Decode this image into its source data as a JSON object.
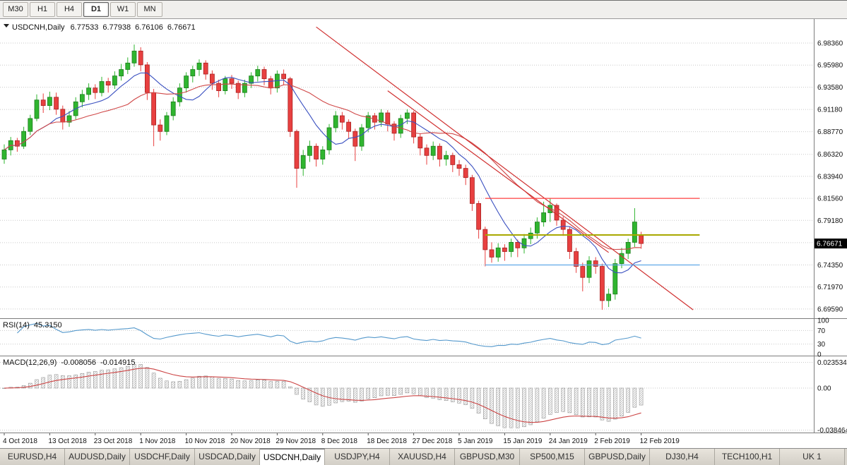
{
  "toolbar": {
    "timeframes": [
      {
        "label": "M30",
        "active": false
      },
      {
        "label": "H1",
        "active": false
      },
      {
        "label": "H4",
        "active": false
      },
      {
        "label": "D1",
        "active": true
      },
      {
        "label": "W1",
        "active": false
      },
      {
        "label": "MN",
        "active": false
      }
    ]
  },
  "chart": {
    "title": {
      "symbol": "USDCNH,Daily",
      "open": "6.77533",
      "high": "6.77938",
      "low": "6.76106",
      "close": "6.76671"
    },
    "price_axis": {
      "labels": [
        "6.98360",
        "6.95980",
        "6.93580",
        "6.91180",
        "6.88770",
        "6.86320",
        "6.83940",
        "6.81560",
        "6.79180",
        "6.74350",
        "6.71970",
        "6.69590"
      ],
      "current": "6.76671"
    },
    "time_axis": {
      "ticks": [
        {
          "label": "4 Oct 2018",
          "i": 0
        },
        {
          "label": "13 Oct 2018",
          "i": 7
        },
        {
          "label": "23 Oct 2018",
          "i": 14
        },
        {
          "label": "1 Nov 2018",
          "i": 21
        },
        {
          "label": "10 Nov 2018",
          "i": 28
        },
        {
          "label": "20 Nov 2018",
          "i": 35
        },
        {
          "label": "29 Nov 2018",
          "i": 42
        },
        {
          "label": "8 Dec 2018",
          "i": 49
        },
        {
          "label": "18 Dec 2018",
          "i": 56
        },
        {
          "label": "27 Dec 2018",
          "i": 63
        },
        {
          "label": "5 Jan 2019",
          "i": 70
        },
        {
          "label": "15 Jan 2019",
          "i": 77
        },
        {
          "label": "24 Jan 2019",
          "i": 84
        },
        {
          "label": "2 Feb 2019",
          "i": 91
        },
        {
          "label": "12 Feb 2019",
          "i": 98
        }
      ]
    }
  },
  "indicators": {
    "rsi": {
      "label": "RSI(14)",
      "value": "45.3150",
      "period": 14,
      "levels": [
        "100",
        "70",
        "30",
        "0"
      ]
    },
    "macd": {
      "label": "MACD(12,26,9)",
      "value_main": "-0.008056",
      "value_signal": "-0.014915",
      "params": [
        12,
        26,
        9
      ],
      "axis": [
        "0.023534",
        "0.00",
        "-0.038464"
      ]
    }
  },
  "chart_data": {
    "type": "candlestick",
    "symbol": "USDCNH",
    "timeframe": "Daily",
    "y_axis": {
      "top": 7.007,
      "bottom": 6.688,
      "grid_step": 0.02398
    },
    "colors": {
      "bull": "#2FB52F",
      "bull_edge": "#1E7E1E",
      "bear": "#E84040",
      "bear_edge": "#A82222",
      "ma_fast": "#3A50C0",
      "ma_slow": "#D04848",
      "trendline": "#D03030",
      "hline_red": "#FF4040",
      "hline_olive": "#A8A800",
      "hline_blue": "#5FA8E8",
      "rsi": "#5599CC",
      "macd_signal": "#CC4444",
      "macd_hist": "#D8D8D8",
      "macd_hist_edge": "#9A9A9A"
    },
    "candles": [
      [
        6.858,
        6.874,
        6.853,
        6.868
      ],
      [
        6.868,
        6.882,
        6.862,
        6.878
      ],
      [
        6.878,
        6.881,
        6.866,
        6.872
      ],
      [
        6.872,
        6.893,
        6.869,
        6.888
      ],
      [
        6.888,
        6.906,
        6.884,
        6.902
      ],
      [
        6.902,
        6.928,
        6.899,
        6.922
      ],
      [
        6.922,
        6.929,
        6.908,
        6.916
      ],
      [
        6.916,
        6.931,
        6.911,
        6.925
      ],
      [
        6.925,
        6.93,
        6.906,
        6.912
      ],
      [
        6.912,
        6.916,
        6.89,
        6.898
      ],
      [
        6.898,
        6.91,
        6.893,
        6.905
      ],
      [
        6.905,
        6.925,
        6.901,
        6.92
      ],
      [
        6.92,
        6.933,
        6.914,
        6.928
      ],
      [
        6.928,
        6.94,
        6.922,
        6.935
      ],
      [
        6.935,
        6.939,
        6.923,
        6.93
      ],
      [
        6.93,
        6.947,
        6.926,
        6.942
      ],
      [
        6.942,
        6.946,
        6.93,
        6.938
      ],
      [
        6.938,
        6.953,
        6.934,
        6.948
      ],
      [
        6.948,
        6.961,
        6.943,
        6.955
      ],
      [
        6.955,
        6.968,
        6.95,
        6.962
      ],
      [
        6.962,
        6.982,
        6.958,
        6.975
      ],
      [
        6.975,
        6.979,
        6.953,
        6.96
      ],
      [
        6.96,
        6.963,
        6.922,
        6.93
      ],
      [
        6.93,
        6.934,
        6.872,
        6.895
      ],
      [
        6.895,
        6.901,
        6.878,
        6.888
      ],
      [
        6.888,
        6.909,
        6.884,
        6.905
      ],
      [
        6.905,
        6.925,
        6.9,
        6.92
      ],
      [
        6.92,
        6.94,
        6.915,
        6.935
      ],
      [
        6.935,
        6.952,
        6.93,
        6.948
      ],
      [
        6.948,
        6.959,
        6.941,
        6.955
      ],
      [
        6.955,
        6.966,
        6.948,
        6.962
      ],
      [
        6.962,
        6.965,
        6.944,
        6.95
      ],
      [
        6.95,
        6.954,
        6.933,
        6.94
      ],
      [
        6.94,
        6.944,
        6.925,
        6.932
      ],
      [
        6.932,
        6.948,
        6.928,
        6.945
      ],
      [
        6.945,
        6.949,
        6.934,
        6.94
      ],
      [
        6.94,
        6.943,
        6.923,
        6.93
      ],
      [
        6.93,
        6.944,
        6.925,
        6.94
      ],
      [
        6.94,
        6.952,
        6.935,
        6.948
      ],
      [
        6.948,
        6.959,
        6.942,
        6.955
      ],
      [
        6.955,
        6.958,
        6.938,
        6.945
      ],
      [
        6.945,
        6.948,
        6.928,
        6.935
      ],
      [
        6.935,
        6.954,
        6.93,
        6.95
      ],
      [
        6.95,
        6.955,
        6.938,
        6.945
      ],
      [
        6.945,
        6.947,
        6.882,
        6.888
      ],
      [
        6.888,
        6.89,
        6.827,
        6.848
      ],
      [
        6.848,
        6.868,
        6.84,
        6.862
      ],
      [
        6.862,
        6.878,
        6.855,
        6.872
      ],
      [
        6.872,
        6.875,
        6.85,
        6.858
      ],
      [
        6.858,
        6.872,
        6.852,
        6.868
      ],
      [
        6.868,
        6.896,
        6.863,
        6.892
      ],
      [
        6.892,
        6.91,
        6.887,
        6.905
      ],
      [
        6.905,
        6.909,
        6.89,
        6.898
      ],
      [
        6.898,
        6.901,
        6.88,
        6.888
      ],
      [
        6.888,
        6.891,
        6.856,
        6.872
      ],
      [
        6.872,
        6.896,
        6.867,
        6.892
      ],
      [
        6.892,
        6.909,
        6.887,
        6.905
      ],
      [
        6.905,
        6.908,
        6.89,
        6.898
      ],
      [
        6.898,
        6.912,
        6.893,
        6.908
      ],
      [
        6.908,
        6.911,
        6.888,
        6.896
      ],
      [
        6.896,
        6.899,
        6.878,
        6.886
      ],
      [
        6.886,
        6.906,
        6.881,
        6.902
      ],
      [
        6.902,
        6.912,
        6.896,
        6.908
      ],
      [
        6.908,
        6.91,
        6.875,
        6.882
      ],
      [
        6.882,
        6.886,
        6.862,
        6.87
      ],
      [
        6.87,
        6.874,
        6.852,
        6.862
      ],
      [
        6.862,
        6.877,
        6.857,
        6.872
      ],
      [
        6.872,
        6.875,
        6.85,
        6.858
      ],
      [
        6.858,
        6.867,
        6.851,
        6.862
      ],
      [
        6.862,
        6.865,
        6.844,
        6.852
      ],
      [
        6.852,
        6.857,
        6.84,
        6.848
      ],
      [
        6.848,
        6.852,
        6.83,
        6.838
      ],
      [
        6.838,
        6.841,
        6.802,
        6.81
      ],
      [
        6.81,
        6.813,
        6.772,
        6.782
      ],
      [
        6.782,
        6.785,
        6.742,
        6.76
      ],
      [
        6.76,
        6.768,
        6.746,
        6.752
      ],
      [
        6.752,
        6.767,
        6.747,
        6.762
      ],
      [
        6.762,
        6.766,
        6.748,
        6.758
      ],
      [
        6.758,
        6.772,
        6.752,
        6.768
      ],
      [
        6.768,
        6.771,
        6.752,
        6.762
      ],
      [
        6.762,
        6.777,
        6.756,
        6.772
      ],
      [
        6.772,
        6.784,
        6.766,
        6.778
      ],
      [
        6.778,
        6.795,
        6.772,
        6.79
      ],
      [
        6.79,
        6.812,
        6.785,
        6.8
      ],
      [
        6.8,
        6.816,
        6.79,
        6.808
      ],
      [
        6.808,
        6.81,
        6.786,
        6.792
      ],
      [
        6.792,
        6.796,
        6.775,
        6.782
      ],
      [
        6.782,
        6.785,
        6.75,
        6.758
      ],
      [
        6.758,
        6.762,
        6.735,
        6.742
      ],
      [
        6.742,
        6.746,
        6.715,
        6.73
      ],
      [
        6.73,
        6.753,
        6.724,
        6.748
      ],
      [
        6.748,
        6.752,
        6.734,
        6.742
      ],
      [
        6.742,
        6.745,
        6.695,
        6.705
      ],
      [
        6.705,
        6.718,
        6.698,
        6.712
      ],
      [
        6.712,
        6.75,
        6.706,
        6.745
      ],
      [
        6.745,
        6.762,
        6.74,
        6.756
      ],
      [
        6.756,
        6.772,
        6.75,
        6.768
      ],
      [
        6.768,
        6.805,
        6.763,
        6.79
      ],
      [
        6.77533,
        6.77938,
        6.76106,
        6.76671
      ]
    ],
    "overlays": {
      "ma_fast_period": 8,
      "ma_slow_period": 20,
      "trendlines": [
        {
          "i1": 48,
          "p1": 7.001,
          "i2": 106,
          "p2": 6.695
        },
        {
          "i1": 59,
          "p1": 6.932,
          "i2": 93,
          "p2": 6.757
        }
      ],
      "hlines": [
        {
          "name": "resistance",
          "price": 6.8156,
          "i1": 74,
          "i2": 107,
          "color": "#FF4040",
          "width": 1.3
        },
        {
          "name": "pivot",
          "price": 6.776,
          "i1": 74,
          "i2": 107,
          "color": "#A8A800",
          "width": 2
        },
        {
          "name": "support",
          "price": 6.7435,
          "i1": 74,
          "i2": 107,
          "color": "#5FA8E8",
          "width": 1.3
        }
      ]
    }
  },
  "tabs": [
    {
      "label": "EURUSD,H4",
      "active": false
    },
    {
      "label": "AUDUSD,Daily",
      "active": false
    },
    {
      "label": "USDCHF,Daily",
      "active": false
    },
    {
      "label": "USDCAD,Daily",
      "active": false
    },
    {
      "label": "USDCNH,Daily",
      "active": true
    },
    {
      "label": "USDJPY,H4",
      "active": false
    },
    {
      "label": "XAUUSD,H4",
      "active": false
    },
    {
      "label": "GBPUSD,M30",
      "active": false
    },
    {
      "label": "SP500,M15",
      "active": false
    },
    {
      "label": "GBPUSD,Daily",
      "active": false
    },
    {
      "label": "DJ30,H4",
      "active": false
    },
    {
      "label": "TECH100,H1",
      "active": false
    },
    {
      "label": "UK 1",
      "active": false
    }
  ]
}
